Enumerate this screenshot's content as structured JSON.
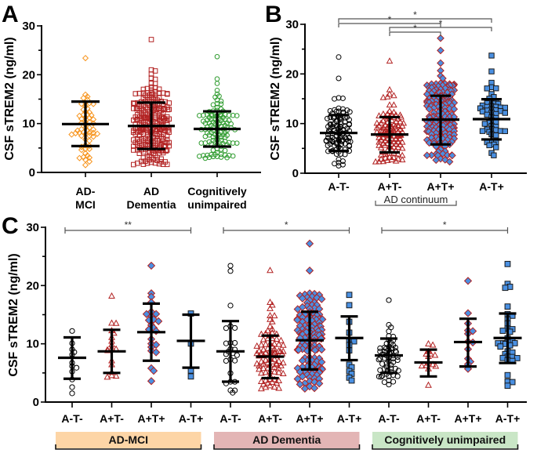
{
  "chart_data": [
    {
      "panel": "A",
      "type": "scatter",
      "subtype": "dot-plot with mean ± SD",
      "title": "",
      "xlabel": "",
      "ylabel": "CSF sTREM2 (ng/ml)",
      "ylim": [
        0,
        30
      ],
      "yticks": [
        0,
        10,
        20,
        30
      ],
      "categories": [
        "AD-\nMCI",
        "AD\nDementia",
        "Cognitively\nunimpaired"
      ],
      "category_lines": [
        [
          "AD-",
          "MCI"
        ],
        [
          "AD",
          "Dementia"
        ],
        [
          "Cognitively",
          "unimpaired"
        ]
      ],
      "series": [
        {
          "name": "AD-MCI",
          "marker": "diamond-open",
          "color": "#F7941D",
          "n": 60,
          "mean": 9.9,
          "sd_low": 5.4,
          "sd_high": 14.5,
          "min": 1.5,
          "max": 23.4
        },
        {
          "name": "AD Dementia",
          "marker": "square-open",
          "color": "#B22222",
          "n": 260,
          "mean": 9.5,
          "sd_low": 4.8,
          "sd_high": 14.3,
          "min": 1.6,
          "max": 27.2
        },
        {
          "name": "Cognitively unimpaired",
          "marker": "circle-open",
          "color": "#2E9B2E",
          "n": 120,
          "mean": 8.9,
          "sd_low": 5.3,
          "sd_high": 12.5,
          "min": 2.9,
          "max": 23.7
        }
      ],
      "significance": []
    },
    {
      "panel": "B",
      "type": "scatter",
      "subtype": "dot-plot with mean ± SD",
      "title": "",
      "xlabel": "",
      "ylabel": "CSF sTREM2 (ng/ml)",
      "ylim": [
        0,
        30
      ],
      "yticks": [
        0,
        10,
        20,
        30
      ],
      "categories": [
        "A-T-",
        "A+T-",
        "A+T+",
        "A-T+"
      ],
      "series": [
        {
          "name": "A-T-",
          "marker": "circle-open",
          "color": "#000000",
          "n": 110,
          "mean": 8.1,
          "sd_low": 4.5,
          "sd_high": 11.7,
          "min": 1.5,
          "max": 23.4
        },
        {
          "name": "A+T-",
          "marker": "triangle-open",
          "color": "#B22222",
          "n": 120,
          "mean": 7.8,
          "sd_low": 4.2,
          "sd_high": 11.3,
          "min": 2.3,
          "max": 22.6
        },
        {
          "name": "A+T+",
          "marker": "diamond-filled",
          "color": "#4A90E2",
          "edge": "#B22222",
          "n": 170,
          "mean": 10.8,
          "sd_low": 5.8,
          "sd_high": 15.6,
          "min": 2.3,
          "max": 27.2
        },
        {
          "name": "A-T+",
          "marker": "square-filled",
          "color": "#4A90E2",
          "edge": "#1A1A1A",
          "n": 55,
          "mean": 10.9,
          "sd_low": 6.8,
          "sd_high": 14.9,
          "min": 3.6,
          "max": 23.7
        }
      ],
      "significance": [
        {
          "from": "A-T-",
          "to": "A-T+",
          "label": "*"
        },
        {
          "from": "A-T-",
          "to": "A+T+",
          "label": "*"
        },
        {
          "from": "A+T-",
          "to": "A-T+",
          "label": "*"
        },
        {
          "from": "A+T-",
          "to": "A+T+",
          "label": "*"
        }
      ],
      "bracket": {
        "label": "AD continuum",
        "from": "A+T-",
        "to": "A+T+"
      }
    },
    {
      "panel": "C",
      "type": "scatter",
      "subtype": "grouped dot-plot with mean ± SD",
      "title": "",
      "xlabel": "",
      "ylabel": "CSF sTREM2 (ng/ml)",
      "ylim": [
        0,
        30
      ],
      "yticks": [
        0,
        10,
        20,
        30
      ],
      "categories": [
        "A-T-",
        "A+T-",
        "A+T+",
        "A-T+",
        "A-T-",
        "A+T-",
        "A+T+",
        "A-T+",
        "A-T-",
        "A+T-",
        "A+T+",
        "A-T+"
      ],
      "groups": [
        {
          "label": "AD-MCI",
          "color": "#FDD5A6",
          "span": [
            0,
            3
          ],
          "significance": {
            "from": 0,
            "to": 3,
            "label": "**"
          }
        },
        {
          "label": "AD Dementia",
          "color": "#E3B5B5",
          "span": [
            4,
            7
          ],
          "significance": {
            "from": 4,
            "to": 7,
            "label": "*"
          }
        },
        {
          "label": "Cognitively unimpaired",
          "color": "#C9E6C6",
          "span": [
            8,
            11
          ],
          "significance": {
            "from": 8,
            "to": 11,
            "label": "*"
          }
        }
      ],
      "series": [
        {
          "name": "AD-MCI A-T-",
          "marker": "circle-open",
          "color": "#000000",
          "n": 12,
          "mean": 7.6,
          "sd_low": 4.0,
          "sd_high": 11.1,
          "min": 1.5,
          "max": 12.2
        },
        {
          "name": "AD-MCI A+T-",
          "marker": "triangle-open",
          "color": "#B22222",
          "n": 18,
          "mean": 8.7,
          "sd_low": 5.0,
          "sd_high": 12.4,
          "min": 4.3,
          "max": 18.2
        },
        {
          "name": "AD-MCI A+T+",
          "marker": "diamond-filled",
          "color": "#4A90E2",
          "edge": "#B22222",
          "n": 24,
          "mean": 12.0,
          "sd_low": 7.1,
          "sd_high": 16.9,
          "min": 3.6,
          "max": 23.4
        },
        {
          "name": "AD-MCI A-T+",
          "marker": "square-filled",
          "color": "#4A90E2",
          "edge": "#1A1A1A",
          "n": 4,
          "mean": 10.5,
          "sd_low": 5.9,
          "sd_high": 15.0,
          "min": 4.4,
          "max": 15.2
        },
        {
          "name": "AD Dementia A-T-",
          "marker": "circle-open",
          "color": "#000000",
          "n": 25,
          "mean": 8.7,
          "sd_low": 3.5,
          "sd_high": 13.9,
          "min": 1.6,
          "max": 23.4
        },
        {
          "name": "AD Dementia A+T-",
          "marker": "triangle-open",
          "color": "#B22222",
          "n": 90,
          "mean": 7.8,
          "sd_low": 4.1,
          "sd_high": 11.4,
          "min": 2.3,
          "max": 22.6
        },
        {
          "name": "AD Dementia A+T+",
          "marker": "diamond-filled",
          "color": "#4A90E2",
          "edge": "#B22222",
          "n": 130,
          "mean": 10.6,
          "sd_low": 5.6,
          "sd_high": 15.5,
          "min": 2.3,
          "max": 27.2
        },
        {
          "name": "AD Dementia A-T+",
          "marker": "square-filled",
          "color": "#4A90E2",
          "edge": "#1A1A1A",
          "n": 14,
          "mean": 11.0,
          "sd_low": 7.2,
          "sd_high": 14.7,
          "min": 3.7,
          "max": 18.4
        },
        {
          "name": "Cognitively unimpaired A-T-",
          "marker": "circle-open",
          "color": "#000000",
          "n": 60,
          "mean": 8.0,
          "sd_low": 5.0,
          "sd_high": 10.9,
          "min": 3.0,
          "max": 17.5
        },
        {
          "name": "Cognitively unimpaired A+T-",
          "marker": "triangle-open",
          "color": "#B22222",
          "n": 14,
          "mean": 6.8,
          "sd_low": 4.4,
          "sd_high": 9.0,
          "min": 2.9,
          "max": 10.0
        },
        {
          "name": "Cognitively unimpaired A+T+",
          "marker": "diamond-filled",
          "color": "#4A90E2",
          "edge": "#B22222",
          "n": 13,
          "mean": 10.3,
          "sd_low": 6.1,
          "sd_high": 14.3,
          "min": 5.7,
          "max": 20.8
        },
        {
          "name": "Cognitively unimpaired A-T+",
          "marker": "square-filled",
          "color": "#4A90E2",
          "edge": "#1A1A1A",
          "n": 35,
          "mean": 11.0,
          "sd_low": 6.7,
          "sd_high": 15.2,
          "min": 2.8,
          "max": 23.7
        }
      ]
    }
  ],
  "labels": {
    "panel_a": "A",
    "panel_b": "B",
    "panel_c": "C",
    "ylabel": "CSF sTREM2 (ng/ml)"
  }
}
